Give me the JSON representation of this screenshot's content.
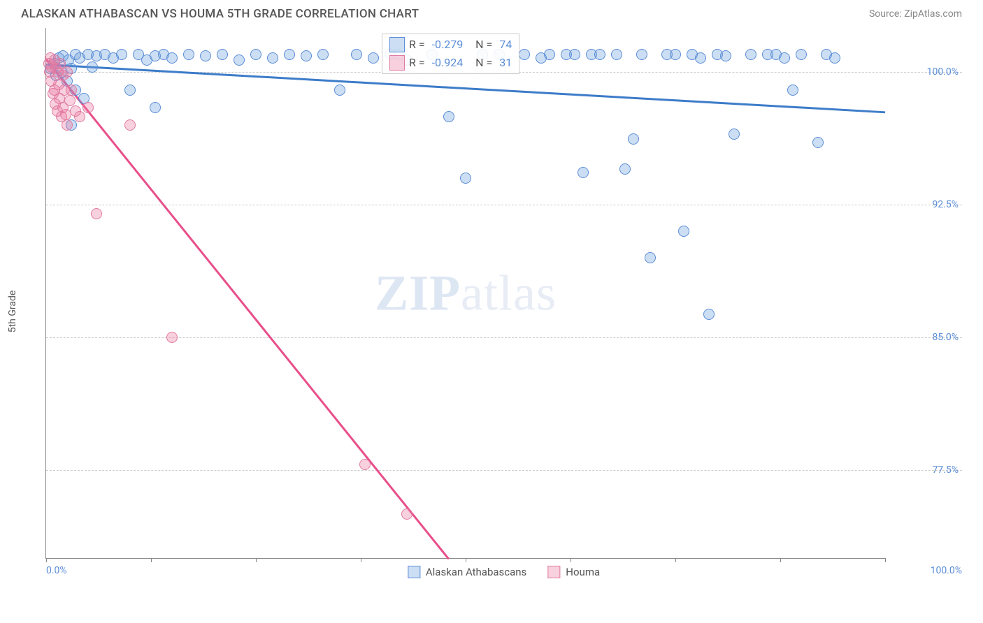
{
  "title": "ALASKAN ATHABASCAN VS HOUMA 5TH GRADE CORRELATION CHART",
  "source": "Source: ZipAtlas.com",
  "y_axis_label": "5th Grade",
  "watermark_bold": "ZIP",
  "watermark_light": "atlas",
  "chart": {
    "type": "scatter",
    "xlim": [
      0,
      100
    ],
    "ylim": [
      72.5,
      102.5
    ],
    "y_ticks": [
      77.5,
      85.0,
      92.5,
      100.0
    ],
    "y_tick_labels": [
      "77.5%",
      "85.0%",
      "92.5%",
      "100.0%"
    ],
    "x_ticks": [
      0,
      12.5,
      25,
      37.5,
      50,
      62.5,
      75,
      87.5,
      100
    ],
    "x_extremes": [
      "0.0%",
      "100.0%"
    ],
    "background_color": "#ffffff",
    "grid_color": "#cccccc",
    "axis_color": "#888888",
    "tick_label_color": "#5b8dd6",
    "series": [
      {
        "name": "Alaskan Athabascans",
        "fill": "rgba(110,160,220,0.35)",
        "stroke": "#5b8dd6",
        "trend_color": "#3d7cc9",
        "trend": {
          "x1": 0,
          "y1": 100.5,
          "x2": 100,
          "y2": 97.8
        },
        "R": "-0.279",
        "N": "74",
        "points": [
          [
            0.5,
            100.2
          ],
          [
            1,
            100.5
          ],
          [
            1.2,
            99.8
          ],
          [
            1.5,
            100.8
          ],
          [
            1.8,
            100.0
          ],
          [
            2,
            100.9
          ],
          [
            2.5,
            99.5
          ],
          [
            2.7,
            100.7
          ],
          [
            3,
            100.2
          ],
          [
            3,
            97.0
          ],
          [
            3.5,
            101.0
          ],
          [
            3.5,
            99.0
          ],
          [
            4,
            100.8
          ],
          [
            4.5,
            98.5
          ],
          [
            5,
            101.0
          ],
          [
            5.5,
            100.3
          ],
          [
            6,
            100.9
          ],
          [
            7,
            101.0
          ],
          [
            8,
            100.8
          ],
          [
            9,
            101.0
          ],
          [
            10,
            99.0
          ],
          [
            11,
            101.0
          ],
          [
            12,
            100.7
          ],
          [
            13,
            100.9
          ],
          [
            13,
            98.0
          ],
          [
            14,
            101.0
          ],
          [
            15,
            100.8
          ],
          [
            17,
            101.0
          ],
          [
            19,
            100.9
          ],
          [
            21,
            101.0
          ],
          [
            23,
            100.7
          ],
          [
            25,
            101.0
          ],
          [
            27,
            100.8
          ],
          [
            29,
            101.0
          ],
          [
            31,
            100.9
          ],
          [
            33,
            101.0
          ],
          [
            35,
            99.0
          ],
          [
            37,
            101.0
          ],
          [
            39,
            100.8
          ],
          [
            41,
            101.0
          ],
          [
            42,
            101.0
          ],
          [
            43,
            100.7
          ],
          [
            46,
            101.0
          ],
          [
            48,
            97.5
          ],
          [
            50,
            94.0
          ],
          [
            52,
            101.0
          ],
          [
            54,
            101.0
          ],
          [
            57,
            101.0
          ],
          [
            59,
            100.8
          ],
          [
            60,
            101.0
          ],
          [
            62,
            101.0
          ],
          [
            63,
            101.0
          ],
          [
            64,
            94.3
          ],
          [
            65,
            101.0
          ],
          [
            66,
            101.0
          ],
          [
            68,
            101.0
          ],
          [
            69,
            94.5
          ],
          [
            70,
            96.2
          ],
          [
            71,
            101.0
          ],
          [
            72,
            89.5
          ],
          [
            74,
            101.0
          ],
          [
            75,
            101.0
          ],
          [
            76,
            91.0
          ],
          [
            77,
            101.0
          ],
          [
            78,
            100.8
          ],
          [
            79,
            86.3
          ],
          [
            80,
            101.0
          ],
          [
            81,
            100.9
          ],
          [
            82,
            96.5
          ],
          [
            84,
            101.0
          ],
          [
            86,
            101.0
          ],
          [
            87,
            101.0
          ],
          [
            88,
            100.8
          ],
          [
            89,
            99.0
          ],
          [
            90,
            101.0
          ],
          [
            92,
            96.0
          ],
          [
            93,
            101.0
          ],
          [
            94,
            100.8
          ]
        ]
      },
      {
        "name": "Houma",
        "fill": "rgba(235,120,160,0.35)",
        "stroke": "#e07ba0",
        "trend_color": "#e84f8a",
        "trend": {
          "x1": 0,
          "y1": 100.8,
          "x2": 48,
          "y2": 72.5
        },
        "R": "-0.924",
        "N": "31",
        "points": [
          [
            0.3,
            100.5
          ],
          [
            0.4,
            100.0
          ],
          [
            0.5,
            100.8
          ],
          [
            0.6,
            99.5
          ],
          [
            0.7,
            100.3
          ],
          [
            0.8,
            98.8
          ],
          [
            1.0,
            100.7
          ],
          [
            1.0,
            99.0
          ],
          [
            1.1,
            98.2
          ],
          [
            1.2,
            100.2
          ],
          [
            1.3,
            97.8
          ],
          [
            1.5,
            99.3
          ],
          [
            1.4,
            100.0
          ],
          [
            1.6,
            98.5
          ],
          [
            1.7,
            100.5
          ],
          [
            1.8,
            97.5
          ],
          [
            2.0,
            99.8
          ],
          [
            2.0,
            98.0
          ],
          [
            2.2,
            99.0
          ],
          [
            2.3,
            97.6
          ],
          [
            2.5,
            100.0
          ],
          [
            2.5,
            97.0
          ],
          [
            2.8,
            98.4
          ],
          [
            3.0,
            99.0
          ],
          [
            3.5,
            97.8
          ],
          [
            4.0,
            97.5
          ],
          [
            5.0,
            98.0
          ],
          [
            6.0,
            92.0
          ],
          [
            10.0,
            97.0
          ],
          [
            15.0,
            85.0
          ],
          [
            38.0,
            77.8
          ],
          [
            43.0,
            75.0
          ]
        ]
      }
    ]
  },
  "stats_box": {
    "left_pct": 40,
    "top_pct": 1
  },
  "stats_labels": {
    "R": "R = ",
    "N": "N = "
  },
  "legend_items": [
    {
      "label": "Alaskan Athabascans",
      "fill": "rgba(110,160,220,0.35)",
      "stroke": "#5b8dd6"
    },
    {
      "label": "Houma",
      "fill": "rgba(235,120,160,0.35)",
      "stroke": "#e07ba0"
    }
  ]
}
